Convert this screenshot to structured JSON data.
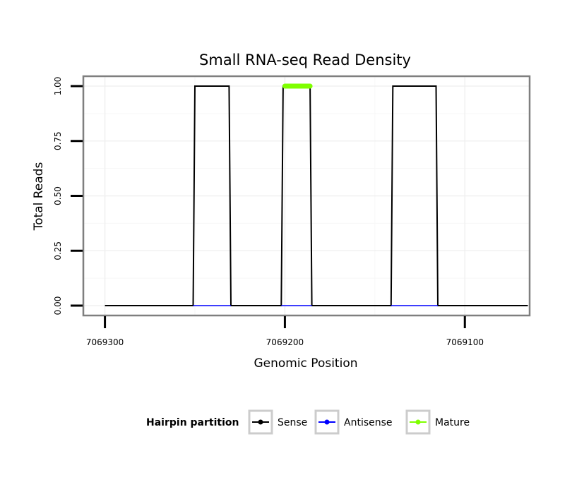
{
  "chart_data": {
    "type": "line",
    "title": "Small RNA-seq Read Density",
    "xlabel": "Genomic Position",
    "ylabel": "Total Reads",
    "xlim": [
      7069312,
      7069064
    ],
    "ylim": [
      -0.045,
      1.045
    ],
    "x_ticks": [
      7069300,
      7069200,
      7069100
    ],
    "x_tick_labels": [
      "7069300",
      "7069200",
      "7069100"
    ],
    "y_ticks": [
      0,
      0.25,
      0.5,
      0.75,
      1
    ],
    "y_tick_labels": [
      "0.00",
      "0.25",
      "0.50",
      "0.75",
      "1.00"
    ],
    "grid": true,
    "legend": {
      "title": "Hairpin partition",
      "position": "bottom",
      "entries": [
        {
          "label": "Sense",
          "color": "#000000"
        },
        {
          "label": "Antisense",
          "color": "#0000ff"
        },
        {
          "label": "Mature",
          "color": "#7fff00"
        }
      ]
    },
    "series": [
      {
        "name": "Sense",
        "color": "#000000",
        "x": [
          7069300,
          7069251,
          7069250,
          7069231,
          7069230,
          7069202,
          7069201,
          7069186,
          7069185,
          7069141,
          7069140,
          7069116,
          7069115,
          7069065
        ],
        "y": [
          0,
          0,
          1,
          1,
          0,
          0,
          1,
          1,
          0,
          0,
          1,
          1,
          0,
          0
        ]
      },
      {
        "name": "Antisense",
        "color": "#0000ff",
        "segments": [
          [
            7069251,
            7069230
          ],
          [
            7069202,
            7069185
          ],
          [
            7069141,
            7069115
          ]
        ],
        "y": 0
      },
      {
        "name": "Mature",
        "color": "#7fff00",
        "x": [
          7069200,
          7069186
        ],
        "y": [
          1,
          1
        ]
      }
    ]
  }
}
